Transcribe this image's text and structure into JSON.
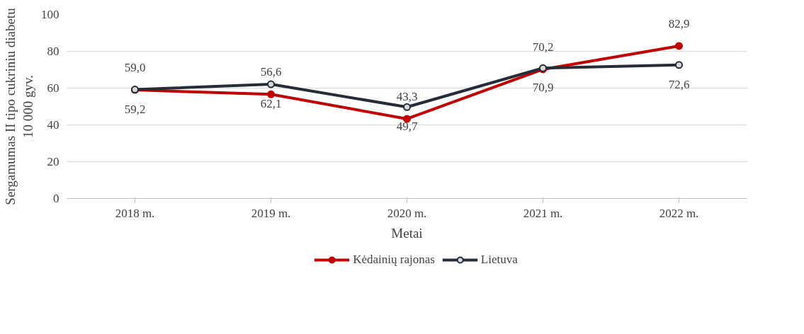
{
  "chart_data": {
    "type": "line",
    "xlabel": "Metai",
    "ylabel": "Sergamumas II tipo cukriniu diabetu 10 000 gyv.",
    "categories": [
      "2018 m.",
      "2019 m.",
      "2020 m.",
      "2021 m.",
      "2022 m."
    ],
    "series": [
      {
        "name": "Kėdainių rajonas",
        "color": "#c00000",
        "values": [
          59.0,
          56.6,
          43.3,
          70.2,
          82.9
        ],
        "value_labels": [
          "59,0",
          "56,6",
          "43,3",
          "70,2",
          "82,9"
        ]
      },
      {
        "name": "Lietuva",
        "color": "#262d38",
        "values": [
          59.2,
          62.1,
          49.7,
          70.9,
          72.6
        ],
        "value_labels": [
          "59,2",
          "62,1",
          "49,7",
          "70,9",
          "72,6"
        ]
      }
    ],
    "ylim": [
      0,
      100
    ],
    "yticks": [
      0,
      20,
      40,
      60,
      80,
      100
    ],
    "grid": "y",
    "legend": "bottom",
    "marker": "circle",
    "line_style": "solid"
  }
}
